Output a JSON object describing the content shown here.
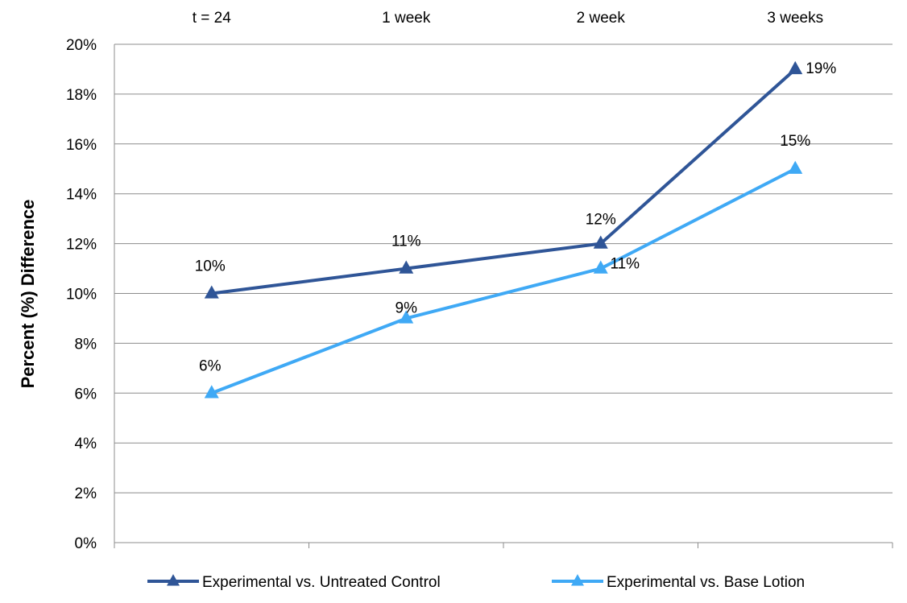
{
  "chart_data": {
    "type": "line",
    "title": "",
    "xlabel": "",
    "ylabel": "Percent (%) Difference",
    "categories": [
      "t = 24",
      "1 week",
      "2 week",
      "3 weeks"
    ],
    "ylim": [
      0,
      20
    ],
    "yticks": [
      "0%",
      "2%",
      "4%",
      "6%",
      "8%",
      "10%",
      "12%",
      "14%",
      "16%",
      "18%",
      "20%"
    ],
    "y_tick_values": [
      0,
      2,
      4,
      6,
      8,
      10,
      12,
      14,
      16,
      18,
      20
    ],
    "x_axis_labels_position": "top",
    "grid": true,
    "legend_position": "bottom",
    "series": [
      {
        "name": "Experimental vs. Untreated Control",
        "values": [
          10,
          11,
          12,
          19
        ],
        "labels": [
          "10%",
          "11%",
          "12%",
          "19%"
        ],
        "color": "#2F5597",
        "marker": "triangle"
      },
      {
        "name": "Experimental vs. Base Lotion",
        "values": [
          6,
          9,
          11,
          15
        ],
        "labels": [
          "6%",
          "9%",
          "11%",
          "15%"
        ],
        "color": "#3FA9F5",
        "marker": "triangle"
      }
    ]
  }
}
